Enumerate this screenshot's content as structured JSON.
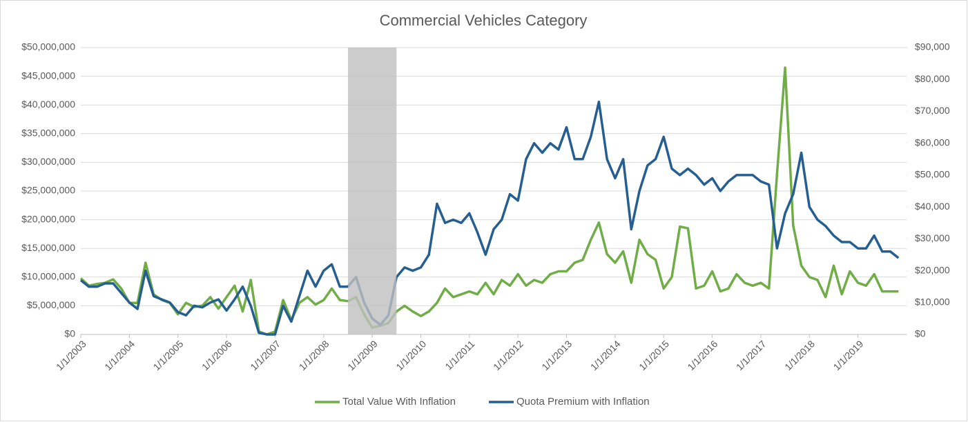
{
  "chart_data": {
    "type": "line",
    "title": "Commercial Vehicles Category",
    "x": [
      "1/1/2003",
      "3/1/2003",
      "5/1/2003",
      "7/1/2003",
      "9/1/2003",
      "11/1/2003",
      "1/1/2004",
      "3/1/2004",
      "5/1/2004",
      "7/1/2004",
      "9/1/2004",
      "11/1/2004",
      "1/1/2005",
      "3/1/2005",
      "5/1/2005",
      "7/1/2005",
      "9/1/2005",
      "11/1/2005",
      "1/1/2006",
      "3/1/2006",
      "5/1/2006",
      "7/1/2006",
      "9/1/2006",
      "11/1/2006",
      "1/1/2007",
      "3/1/2007",
      "5/1/2007",
      "7/1/2007",
      "9/1/2007",
      "11/1/2007",
      "1/1/2008",
      "3/1/2008",
      "5/1/2008",
      "7/1/2008",
      "9/1/2008",
      "11/1/2008",
      "1/1/2009",
      "3/1/2009",
      "5/1/2009",
      "7/1/2009",
      "9/1/2009",
      "11/1/2009",
      "1/1/2010",
      "3/1/2010",
      "5/1/2010",
      "7/1/2010",
      "9/1/2010",
      "11/1/2010",
      "1/1/2011",
      "3/1/2011",
      "5/1/2011",
      "7/1/2011",
      "9/1/2011",
      "11/1/2011",
      "1/1/2012",
      "3/1/2012",
      "5/1/2012",
      "7/1/2012",
      "9/1/2012",
      "11/1/2012",
      "1/1/2013",
      "3/1/2013",
      "5/1/2013",
      "7/1/2013",
      "9/1/2013",
      "11/1/2013",
      "1/1/2014",
      "3/1/2014",
      "5/1/2014",
      "7/1/2014",
      "9/1/2014",
      "11/1/2014",
      "1/1/2015",
      "3/1/2015",
      "5/1/2015",
      "7/1/2015",
      "9/1/2015",
      "11/1/2015",
      "1/1/2016",
      "3/1/2016",
      "5/1/2016",
      "7/1/2016",
      "9/1/2016",
      "11/1/2016",
      "1/1/2017",
      "3/1/2017",
      "5/1/2017",
      "7/1/2017",
      "9/1/2017",
      "11/1/2017",
      "1/1/2018",
      "3/1/2018",
      "5/1/2018",
      "7/1/2018",
      "9/1/2018",
      "11/1/2018",
      "1/1/2019",
      "3/1/2019",
      "5/1/2019",
      "7/1/2019",
      "9/1/2019",
      "11/1/2019"
    ],
    "series": [
      {
        "name": "Total Value With Inflation",
        "color": "#70ad47",
        "axis": "y",
        "values": [
          9800000,
          8500000,
          8800000,
          9000000,
          9600000,
          8000000,
          5500000,
          5500000,
          12500000,
          7000000,
          6000000,
          5500000,
          3500000,
          5500000,
          4800000,
          5000000,
          6500000,
          4500000,
          6500000,
          8500000,
          4000000,
          9500000,
          500000,
          0,
          500000,
          6000000,
          2500000,
          5500000,
          6500000,
          5200000,
          6000000,
          8000000,
          6000000,
          5800000,
          6500000,
          3500000,
          1200000,
          1500000,
          2000000,
          4000000,
          5000000,
          4000000,
          3200000,
          4000000,
          5500000,
          8000000,
          6500000,
          7000000,
          7500000,
          7000000,
          9000000,
          7000000,
          9500000,
          8500000,
          10500000,
          8500000,
          9500000,
          9000000,
          10500000,
          11000000,
          11000000,
          12500000,
          13000000,
          16500000,
          19500000,
          14000000,
          12500000,
          14500000,
          9000000,
          16500000,
          14000000,
          13000000,
          8000000,
          10000000,
          18800000,
          18500000,
          8000000,
          8500000,
          11000000,
          7500000,
          8000000,
          10500000,
          9000000,
          8500000,
          9000000,
          8000000,
          28000000,
          46500000,
          19000000,
          12000000,
          10000000,
          9500000,
          6500000,
          12000000,
          7000000,
          11000000,
          9000000,
          8500000,
          10500000,
          7500000,
          7500000,
          7500000
        ]
      },
      {
        "name": "Quota Premium with Inflation",
        "color": "#255e91",
        "axis": "y2",
        "values": [
          17000,
          15000,
          15000,
          16000,
          16000,
          13000,
          10000,
          8000,
          20000,
          12000,
          11000,
          10000,
          7000,
          6000,
          9000,
          8500,
          10000,
          11000,
          7500,
          11000,
          15000,
          9000,
          500,
          0,
          0,
          9000,
          4000,
          12000,
          20000,
          15000,
          20000,
          22000,
          15000,
          15000,
          18000,
          10000,
          5000,
          3000,
          6000,
          18000,
          21000,
          20000,
          21000,
          25000,
          41000,
          35000,
          36000,
          35000,
          38000,
          32000,
          25000,
          33000,
          36000,
          44000,
          42000,
          55000,
          60000,
          57000,
          60000,
          58000,
          65000,
          55000,
          55000,
          62000,
          73000,
          55000,
          49000,
          55000,
          33000,
          45000,
          53000,
          55000,
          62000,
          52000,
          50000,
          52000,
          50000,
          47000,
          49000,
          45000,
          48000,
          50000,
          50000,
          50000,
          48000,
          47000,
          27000,
          38000,
          44000,
          57000,
          40000,
          36000,
          34000,
          31000,
          29000,
          29000,
          27000,
          27000,
          31000,
          26000,
          26000,
          24000
        ]
      }
    ],
    "shaded_range": [
      "7/1/2008",
      "7/1/2009"
    ],
    "ylim": [
      0,
      50000000
    ],
    "yticks": [
      {
        "value": 0,
        "label": "$0"
      },
      {
        "value": 5000000,
        "label": "$5,000,000"
      },
      {
        "value": 10000000,
        "label": "$10,000,000"
      },
      {
        "value": 15000000,
        "label": "$15,000,000"
      },
      {
        "value": 20000000,
        "label": "$20,000,000"
      },
      {
        "value": 25000000,
        "label": "$25,000,000"
      },
      {
        "value": 30000000,
        "label": "$30,000,000"
      },
      {
        "value": 35000000,
        "label": "$35,000,000"
      },
      {
        "value": 40000000,
        "label": "$40,000,000"
      },
      {
        "value": 45000000,
        "label": "$45,000,000"
      },
      {
        "value": 50000000,
        "label": "$50,000,000"
      }
    ],
    "y2lim": [
      0,
      90000
    ],
    "y2ticks": [
      {
        "value": 0,
        "label": "$0"
      },
      {
        "value": 10000,
        "label": "$10,000"
      },
      {
        "value": 20000,
        "label": "$20,000"
      },
      {
        "value": 30000,
        "label": "$30,000"
      },
      {
        "value": 40000,
        "label": "$40,000"
      },
      {
        "value": 50000,
        "label": "$50,000"
      },
      {
        "value": 60000,
        "label": "$60,000"
      },
      {
        "value": 70000,
        "label": "$70,000"
      },
      {
        "value": 80000,
        "label": "$80,000"
      },
      {
        "value": 90000,
        "label": "$90,000"
      }
    ],
    "grid": true,
    "legend": "bottom"
  }
}
